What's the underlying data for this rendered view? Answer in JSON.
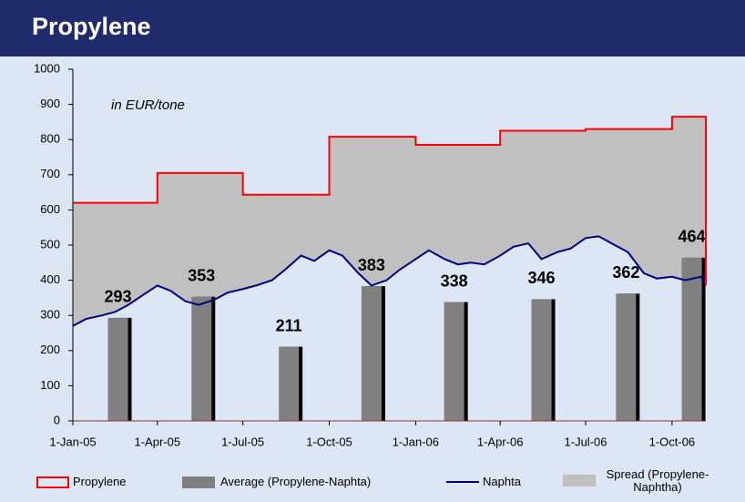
{
  "chart_data": {
    "type": "combo",
    "title": "Propylene",
    "annotation": "in EUR/tone",
    "xlim": [
      "2005-01-01",
      "2006-11-06"
    ],
    "xticks": [
      {
        "value": "2005-01-01",
        "label": "1-Jan-05"
      },
      {
        "value": "2005-04-01",
        "label": "1-Apr-05"
      },
      {
        "value": "2005-07-01",
        "label": "1-Jul-05"
      },
      {
        "value": "2005-10-01",
        "label": "1-Oct-05"
      },
      {
        "value": "2006-01-01",
        "label": "1-Jan-06"
      },
      {
        "value": "2006-04-01",
        "label": "1-Apr-06"
      },
      {
        "value": "2006-07-01",
        "label": "1-Jul-06"
      },
      {
        "value": "2006-10-01",
        "label": "1-Oct-06"
      }
    ],
    "ylim": [
      0,
      1000
    ],
    "yticks": [
      0,
      100,
      200,
      300,
      400,
      500,
      600,
      700,
      800,
      900,
      1000
    ],
    "series": [
      {
        "name": "Propylene",
        "type": "step",
        "color": "#ff0000",
        "x": [
          "2005-01-01",
          "2005-04-01",
          "2005-07-01",
          "2005-10-01",
          "2006-01-01",
          "2006-04-01",
          "2006-07-01",
          "2006-10-01"
        ],
        "values": [
          620,
          705,
          643,
          808,
          785,
          825,
          830,
          865
        ]
      },
      {
        "name": "Average (Propylene-Naphta)",
        "type": "bar",
        "color": "#808080",
        "x": [
          "2005-02-18",
          "2005-05-18",
          "2005-08-19",
          "2005-11-15",
          "2006-02-11",
          "2006-05-15",
          "2006-08-13",
          "2006-10-22"
        ],
        "values": [
          293,
          353,
          211,
          383,
          338,
          346,
          362,
          464
        ]
      },
      {
        "name": "Naphta",
        "type": "line",
        "color": "#000080",
        "x": [
          "2005-01-01",
          "2005-01-15",
          "2005-02-01",
          "2005-02-15",
          "2005-03-01",
          "2005-03-15",
          "2005-04-01",
          "2005-04-15",
          "2005-05-01",
          "2005-05-15",
          "2005-06-01",
          "2005-06-15",
          "2005-07-01",
          "2005-07-15",
          "2005-08-01",
          "2005-08-15",
          "2005-09-01",
          "2005-09-15",
          "2005-10-01",
          "2005-10-15",
          "2005-11-01",
          "2005-11-15",
          "2005-12-01",
          "2005-12-15",
          "2006-01-01",
          "2006-01-15",
          "2006-02-01",
          "2006-02-15",
          "2006-03-01",
          "2006-03-15",
          "2006-04-01",
          "2006-04-15",
          "2006-05-01",
          "2006-05-15",
          "2006-06-01",
          "2006-06-15",
          "2006-07-01",
          "2006-07-15",
          "2006-08-01",
          "2006-08-15",
          "2006-09-01",
          "2006-09-15",
          "2006-10-01",
          "2006-10-15",
          "2006-11-01",
          "2006-11-06"
        ],
        "values": [
          270,
          290,
          300,
          310,
          330,
          355,
          385,
          370,
          340,
          330,
          345,
          365,
          375,
          385,
          400,
          430,
          470,
          455,
          485,
          470,
          420,
          385,
          400,
          430,
          460,
          485,
          460,
          445,
          450,
          445,
          470,
          495,
          505,
          460,
          480,
          490,
          520,
          525,
          500,
          480,
          420,
          405,
          410,
          400,
          410,
          385
        ]
      },
      {
        "name": "Spread (Propylene-Naphtha)",
        "type": "spread",
        "color": "#c0c0c0"
      }
    ]
  }
}
